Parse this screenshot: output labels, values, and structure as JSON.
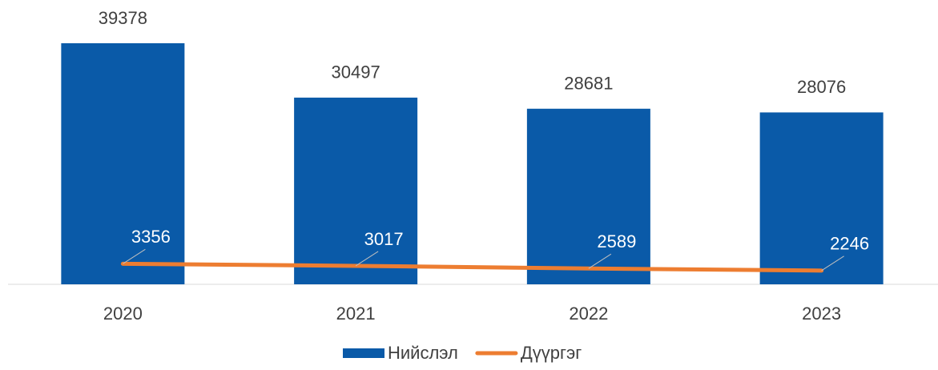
{
  "chart_data": {
    "type": "bar",
    "categories": [
      "2020",
      "2021",
      "2022",
      "2023"
    ],
    "series": [
      {
        "name": "Нийслэл",
        "color": "#0a5aa8",
        "type": "bar",
        "values": [
          39378,
          30497,
          28681,
          28076
        ]
      },
      {
        "name": "Дүүргэг",
        "color": "#ed7d31",
        "type": "line",
        "values": [
          3356,
          3017,
          2589,
          2246
        ]
      }
    ],
    "legend": "bottom"
  }
}
